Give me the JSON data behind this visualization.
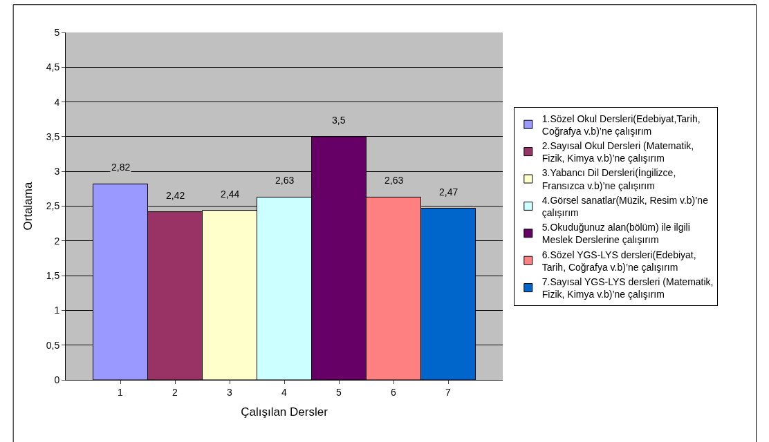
{
  "chart_data": {
    "type": "bar",
    "xlabel": "Çalışılan Dersler",
    "ylabel": "Ortalama",
    "categories": [
      "1",
      "2",
      "3",
      "4",
      "5",
      "6",
      "7"
    ],
    "series": [
      {
        "name": "1.Sözel Okul Dersleri(Edebiyat,Tarih, Coğrafya v.b)’ne çalışırım",
        "color": "#9999ff",
        "values": [
          2.82,
          null,
          null,
          null,
          null,
          null,
          null
        ],
        "value_labels": [
          "2,82",
          null,
          null,
          null,
          null,
          null,
          null
        ]
      },
      {
        "name": "2.Sayısal Okul Dersleri (Matematik, Fizik, Kimya v.b)’ne çalışırım",
        "color": "#993366",
        "values": [
          null,
          2.42,
          null,
          null,
          null,
          null,
          null
        ],
        "value_labels": [
          null,
          "2,42",
          null,
          null,
          null,
          null,
          null
        ]
      },
      {
        "name": "3.Yabancı Dil Dersleri(İngilizce, Fransızca v.b)’ne çalışırım",
        "color": "#ffffcc",
        "values": [
          null,
          null,
          2.44,
          null,
          null,
          null,
          null
        ],
        "value_labels": [
          null,
          null,
          "2,44",
          null,
          null,
          null,
          null
        ]
      },
      {
        "name": "4.Görsel sanatlar(Müzik, Resim v.b)’ne çalışırım",
        "color": "#ccffff",
        "values": [
          null,
          null,
          null,
          2.63,
          null,
          null,
          null
        ],
        "value_labels": [
          null,
          null,
          null,
          "2,63",
          null,
          null,
          null
        ]
      },
      {
        "name": "5.Okuduğunuz alan(bölüm) ile ilgili Meslek Derslerine çalışırım",
        "color": "#660066",
        "values": [
          null,
          null,
          null,
          null,
          3.5,
          null,
          null
        ],
        "value_labels": [
          null,
          null,
          null,
          null,
          "3,5",
          null,
          null
        ]
      },
      {
        "name": "6.Sözel YGS-LYS dersleri(Edebiyat, Tarih, Coğrafya v.b)’ne çalışırım",
        "color": "#ff8080",
        "values": [
          null,
          null,
          null,
          null,
          null,
          2.63,
          null
        ],
        "value_labels": [
          null,
          null,
          null,
          null,
          null,
          "2,63",
          null
        ]
      },
      {
        "name": "7.Sayısal YGS-LYS dersleri (Matematik, Fizik, Kimya v.b)’ne çalışırım",
        "color": "#0066cc",
        "values": [
          null,
          null,
          null,
          null,
          null,
          null,
          2.47
        ],
        "value_labels": [
          null,
          null,
          null,
          null,
          null,
          null,
          "2,47"
        ]
      }
    ],
    "ylim": [
      0,
      5
    ],
    "yticks": [
      0,
      {
        "value": 0.5,
        "label": "0,5"
      },
      1,
      {
        "value": 1.5,
        "label": "1,5"
      },
      2,
      {
        "value": 2.5,
        "label": "2,5"
      },
      3,
      {
        "value": 3.5,
        "label": "3,5"
      },
      4,
      {
        "value": 4.5,
        "label": "4,5"
      },
      5
    ],
    "grid": "y",
    "legend": "right"
  }
}
